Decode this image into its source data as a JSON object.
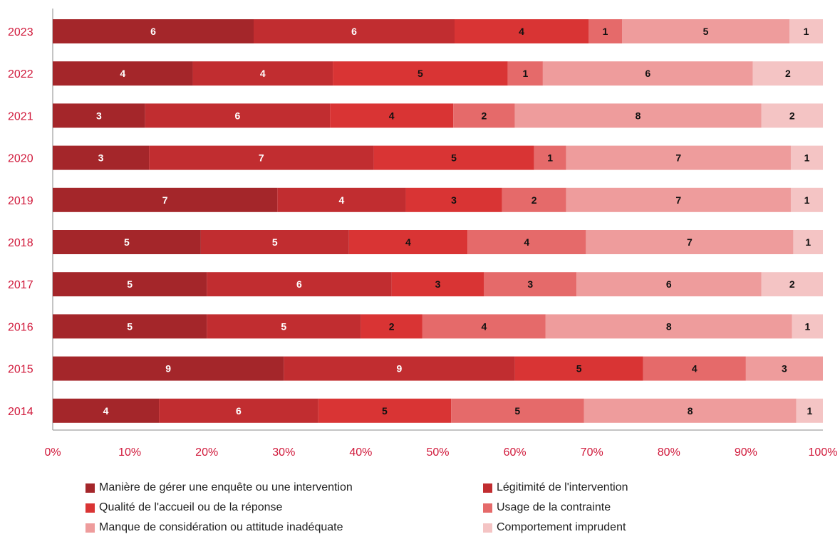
{
  "chart_data": {
    "type": "bar",
    "orientation": "horizontal",
    "stacked": true,
    "normalized": true,
    "title": "",
    "xlabel": "",
    "ylabel": "",
    "xlim": [
      0,
      100
    ],
    "x_ticks": [
      "0%",
      "10%",
      "20%",
      "30%",
      "40%",
      "50%",
      "60%",
      "70%",
      "80%",
      "90%",
      "100%"
    ],
    "categories": [
      "2023",
      "2022",
      "2021",
      "2020",
      "2019",
      "2018",
      "2017",
      "2016",
      "2015",
      "2014"
    ],
    "series": [
      {
        "name": "Manière de gérer une enquête ou une intervention",
        "color": "#a4262a",
        "label_color": "#ffffff",
        "values": [
          6,
          4,
          3,
          3,
          7,
          5,
          5,
          5,
          9,
          4
        ]
      },
      {
        "name": "Légitimité de l'intervention",
        "color": "#c12d30",
        "label_color": "#ffffff",
        "values": [
          6,
          4,
          6,
          7,
          4,
          5,
          6,
          5,
          9,
          6
        ]
      },
      {
        "name": "Qualité de l'accueil ou de la réponse",
        "color": "#d93434",
        "label_color": "#111111",
        "values": [
          4,
          5,
          4,
          5,
          3,
          4,
          3,
          2,
          5,
          5
        ]
      },
      {
        "name": "Usage de la contrainte",
        "color": "#e56a6a",
        "label_color": "#111111",
        "values": [
          1,
          1,
          2,
          1,
          2,
          4,
          3,
          4,
          4,
          5
        ]
      },
      {
        "name": "Manque de considération ou attitude inadéquate",
        "color": "#ee9c9c",
        "label_color": "#111111",
        "values": [
          5,
          6,
          8,
          7,
          7,
          7,
          6,
          8,
          3,
          8
        ]
      },
      {
        "name": "Comportement imprudent",
        "color": "#f4c4c4",
        "label_color": "#111111",
        "values": [
          1,
          2,
          2,
          1,
          1,
          1,
          2,
          1,
          0,
          1
        ]
      }
    ],
    "legend_position": "bottom",
    "grid": false,
    "colors": {
      "axis_labels": "#d0183a",
      "axis_line": "#888888"
    }
  }
}
